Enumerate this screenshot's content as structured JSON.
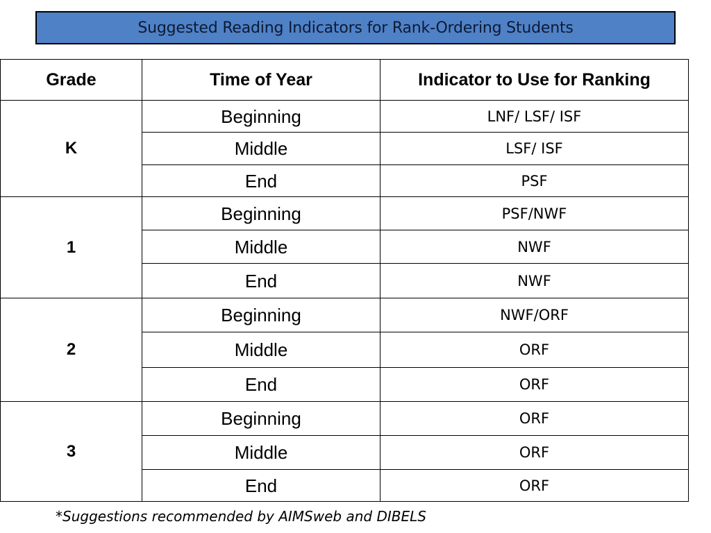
{
  "title": "Suggested Reading Indicators for Rank-Ordering Students",
  "table": {
    "headers": [
      "Grade",
      "Time of Year",
      "Indicator to Use for Ranking"
    ],
    "groups": [
      {
        "grade": "K",
        "rows": [
          {
            "time": "Beginning",
            "indicator": "LNF/ LSF/ ISF"
          },
          {
            "time": "Middle",
            "indicator": "LSF/ ISF"
          },
          {
            "time": "End",
            "indicator": "PSF"
          }
        ]
      },
      {
        "grade": "1",
        "rows": [
          {
            "time": "Beginning",
            "indicator": "PSF/NWF"
          },
          {
            "time": "Middle",
            "indicator": "NWF"
          },
          {
            "time": "End",
            "indicator": "NWF"
          }
        ]
      },
      {
        "grade": "2",
        "rows": [
          {
            "time": "Beginning",
            "indicator": "NWF/ORF"
          },
          {
            "time": "Middle",
            "indicator": "ORF"
          },
          {
            "time": "End",
            "indicator": "ORF"
          }
        ]
      },
      {
        "grade": "3",
        "rows": [
          {
            "time": "Beginning",
            "indicator": "ORF"
          },
          {
            "time": "Middle",
            "indicator": "ORF"
          },
          {
            "time": "End",
            "indicator": "ORF"
          }
        ]
      }
    ]
  },
  "footnote": "*Suggestions recommended by AIMSweb and DIBELS",
  "colors": {
    "title_bg": "#4f81c7",
    "title_text": "#0d1a33",
    "border": "#000000"
  }
}
